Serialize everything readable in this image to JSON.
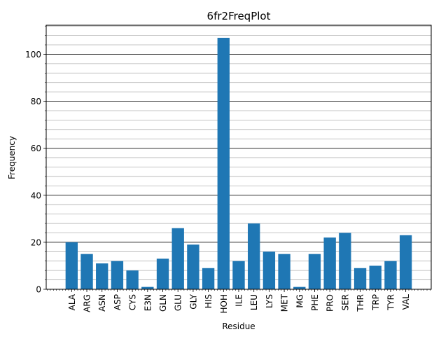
{
  "chart_data": {
    "type": "bar",
    "title": "6fr2FreqPlot",
    "xlabel": "Residue",
    "ylabel": "Frequency",
    "categories": [
      "ALA",
      "ARG",
      "ASN",
      "ASP",
      "CYS",
      "E3N",
      "GLN",
      "GLU",
      "GLY",
      "HIS",
      "HOH",
      "ILE",
      "LEU",
      "LYS",
      "MET",
      "MG",
      "PHE",
      "PRO",
      "SER",
      "THR",
      "TRP",
      "TYR",
      "VAL"
    ],
    "values": [
      20,
      15,
      11,
      12,
      8,
      1,
      13,
      26,
      19,
      9,
      107,
      12,
      28,
      16,
      15,
      1,
      15,
      22,
      24,
      9,
      10,
      12,
      23
    ],
    "ylim": [
      0,
      112.35
    ],
    "yticks": [
      0,
      20,
      40,
      60,
      80,
      100
    ],
    "y_grid": true,
    "bar_color": "#1f77b4"
  }
}
